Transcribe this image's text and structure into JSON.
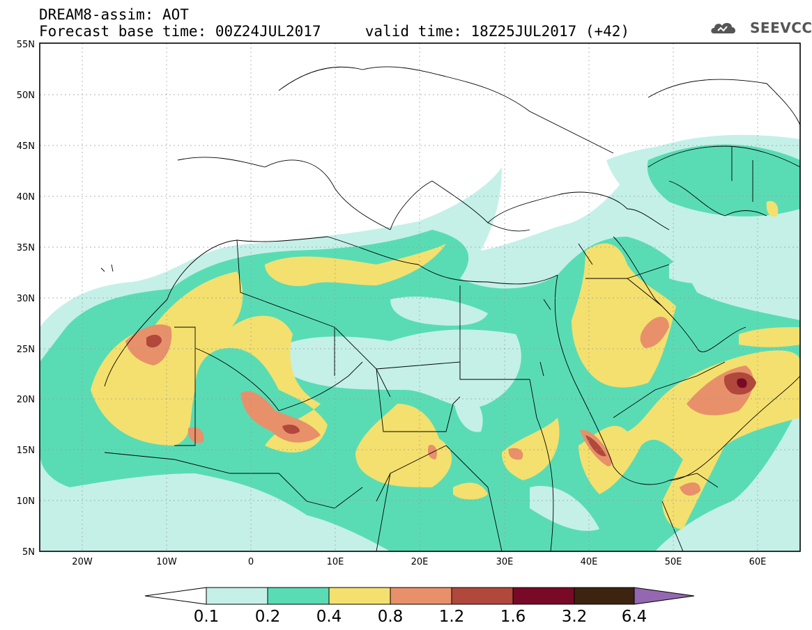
{
  "header": {
    "line1": "DREAM8-assim: AOT",
    "line2": "Forecast base time: 00Z24JUL2017     valid time: 18Z25JUL2017 (+42)"
  },
  "logo": {
    "text": "SEEVCCC",
    "icon": "cloud-icon"
  },
  "map": {
    "lon_range": [
      -25,
      65
    ],
    "lat_range": [
      5,
      55
    ],
    "lat_ticks": [
      "5N",
      "10N",
      "15N",
      "20N",
      "25N",
      "30N",
      "35N",
      "40N",
      "45N",
      "50N",
      "55N"
    ],
    "lon_ticks": [
      "20W",
      "10W",
      "0",
      "10E",
      "20E",
      "30E",
      "40E",
      "50E",
      "60E"
    ],
    "grid": true
  },
  "colorbar": {
    "labels": [
      "0.1",
      "0.2",
      "0.4",
      "0.8",
      "1.2",
      "1.6",
      "3.2",
      "6.4"
    ],
    "colors": [
      "#ffffff",
      "#c4f0e8",
      "#59dcb4",
      "#f4e06e",
      "#e8906a",
      "#b0483c",
      "#780a28",
      "#3c2410",
      "#9468b0"
    ]
  },
  "palette": {
    "c01": "#c4f0e8",
    "c02": "#59dcb4",
    "c04": "#f4e06e",
    "c08": "#e8906a",
    "c12": "#b0483c",
    "c16": "#780a28"
  }
}
